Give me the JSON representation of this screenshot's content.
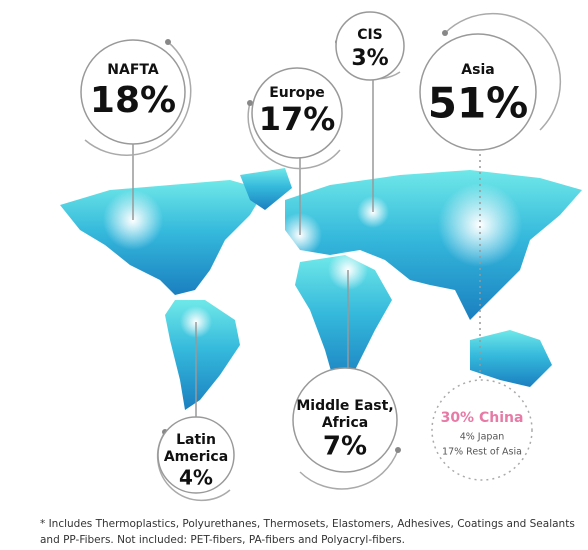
{
  "regions": [
    {
      "name": [
        "NAFTA"
      ],
      "share": "18%"
    },
    {
      "name": [
        "Europe"
      ],
      "share": "17%"
    },
    {
      "name": [
        "CIS"
      ],
      "share": "3%"
    },
    {
      "name": [
        "Asia"
      ],
      "share": "51%"
    },
    {
      "name": [
        "Middle East,",
        "Africa"
      ],
      "share": "7%"
    },
    {
      "name": [
        "Latin",
        "America"
      ],
      "share": "4%"
    }
  ],
  "asia_breakdown": [
    "30% China",
    "4% Japan",
    "17% Rest of Asia"
  ],
  "footnote": [
    "* Includes Thermoplastics, Polyurethanes, Thermosets, Elastomers, Adhesives, Coatings and Sealants",
    "and PP-Fibers. Not included: PET-fibers, PA-fibers and Polyacryl-fibers."
  ]
}
